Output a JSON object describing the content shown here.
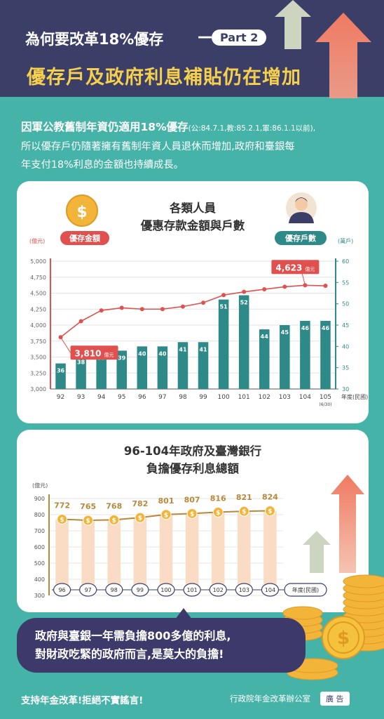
{
  "header": {
    "title": "為何要改革18%優存",
    "dash": "—",
    "part_label": "Part 2",
    "subtitle": "優存戶及政府利息補貼仍在增加"
  },
  "intro": {
    "line1_main": "因軍公教舊制年資仍適用18%優存",
    "line1_note": "(公:84.7.1,教:85.2.1,軍:86.1.1以前),",
    "line2": "所以優存戶仍隨著擁有舊制年資人員退休而增加,政府和臺銀每",
    "line3": "年支付18%利息的金額也持續成長。"
  },
  "card1": {
    "title_line1": "各類人員",
    "title_line2": "優惠存款金額與戶數",
    "left_badge": "優存金額",
    "right_badge": "優存戶數",
    "coin_symbol": "$"
  },
  "card2": {
    "title_line1": "96-104年政府及臺灣銀行",
    "title_line2": "負擔優存利息總額"
  },
  "bubble": {
    "line1": "政府與臺銀一年需負擔800多億的利息,",
    "line2": "對財政吃緊的政府而言,是莫大的負擔!"
  },
  "footer": {
    "slogan": "支持年金改革!拒絕不實謠言!",
    "office": "行政院年金改革辦公室",
    "ad_label": "廣 告"
  },
  "colors": {
    "header_bg": "#3b3f68",
    "page_bg": "#46b3a8",
    "title_yellow": "#f6d04d",
    "bar_teal": "#2e8a89",
    "line_red": "#e0504f",
    "line_gold": "#b8893a",
    "coin_gold": "#f2b53a",
    "pale_bar": "#f9dcc3"
  },
  "chart_data": [
    {
      "type": "bar",
      "title": "各類人員優惠存款金額與戶數",
      "xlabel": "年度(民國)",
      "categories": [
        "92",
        "93",
        "94",
        "95",
        "96",
        "97",
        "98",
        "99",
        "100",
        "101",
        "102",
        "103",
        "104",
        "105"
      ],
      "category_notes": {
        "105": "(6/30)"
      },
      "y_left": {
        "unit": "(億元)",
        "lim": [
          3000,
          5000
        ],
        "ticks": [
          "3,000",
          "3,250",
          "3,500",
          "3,750",
          "4,000",
          "4,250",
          "4,500",
          "4,750",
          "5,000"
        ]
      },
      "y_right": {
        "unit": "(萬戶)",
        "lim": [
          30,
          60
        ],
        "ticks": [
          "30",
          "35",
          "40",
          "45",
          "50",
          "55",
          "60"
        ]
      },
      "series": [
        {
          "name": "優存戶數",
          "kind": "bar",
          "axis": "right",
          "values": [
            36,
            38,
            39,
            39,
            40,
            40,
            41,
            41,
            51,
            52,
            44,
            45,
            46,
            46
          ]
        },
        {
          "name": "優存金額",
          "kind": "line",
          "axis": "left",
          "values": [
            3810,
            4060,
            4230,
            4270,
            4250,
            4250,
            4290,
            4350,
            4470,
            4520,
            4560,
            4600,
            4623,
            4615
          ]
        }
      ],
      "callouts": [
        {
          "category": "92",
          "value": "3,810",
          "unit": "億元"
        },
        {
          "category": "104",
          "value": "4,623",
          "unit": "億元"
        }
      ],
      "grid": true
    },
    {
      "type": "line",
      "title": "96-104年政府及臺灣銀行負擔優存利息總額",
      "xlabel": "年度(民國)",
      "ylabel": "(億元)",
      "ylim": [
        300,
        900
      ],
      "yticks": [
        "300",
        "400",
        "500",
        "600",
        "700",
        "800",
        "900"
      ],
      "categories": [
        "96",
        "97",
        "98",
        "99",
        "100",
        "101",
        "102",
        "103",
        "104"
      ],
      "values": [
        772,
        765,
        768,
        782,
        801,
        807,
        816,
        821,
        824
      ],
      "grid": true
    }
  ]
}
